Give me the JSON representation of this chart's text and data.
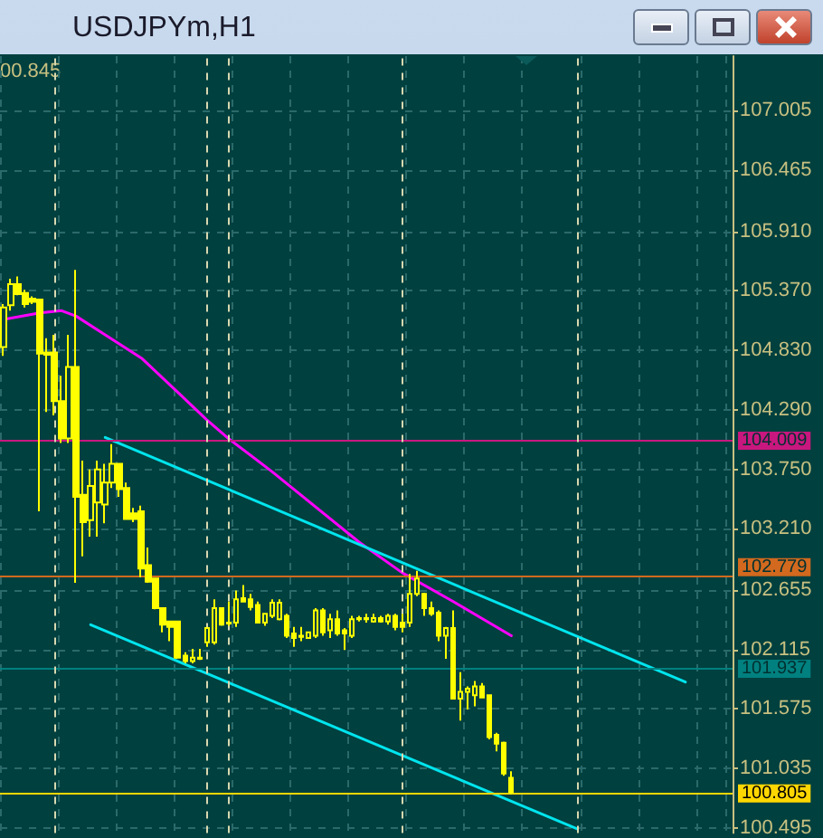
{
  "chart_data": {
    "type": "candlestick",
    "title": "USDJPYm,H1",
    "annotations": [
      "00.845"
    ],
    "categories": [
      null,
      null,
      null,
      null,
      null,
      null,
      null,
      null,
      null,
      null,
      null,
      null,
      null,
      null,
      null,
      null,
      null,
      null,
      null,
      null,
      null,
      null,
      null,
      null,
      null,
      null,
      null,
      null,
      null,
      null,
      null,
      null,
      null,
      null,
      null,
      null,
      null,
      null,
      null,
      null,
      null,
      null,
      null,
      null,
      null,
      null,
      null,
      null,
      null,
      null,
      null,
      null,
      null,
      null,
      null,
      null,
      null,
      null,
      null,
      null,
      null,
      null,
      null,
      null,
      null,
      null,
      null,
      null,
      null,
      null,
      null,
      null,
      null,
      null,
      null,
      null,
      null,
      null,
      null,
      null,
      null,
      null,
      null,
      null,
      null,
      null,
      null,
      null,
      null,
      null,
      null,
      null,
      null,
      null,
      null,
      null,
      null,
      null,
      null,
      null,
      null
    ],
    "ohlc": [
      [
        104.86,
        105.25,
        104.78,
        105.22
      ],
      [
        105.24,
        105.48,
        105.19,
        105.43
      ],
      [
        105.43,
        105.5,
        105.33,
        105.34
      ],
      [
        105.35,
        105.38,
        105.22,
        105.25
      ],
      [
        105.3,
        105.32,
        105.25,
        105.27
      ],
      [
        105.29,
        105.3,
        103.37,
        104.8
      ],
      [
        104.81,
        104.94,
        104.27,
        104.79
      ],
      [
        104.81,
        104.97,
        104.24,
        104.37
      ],
      [
        104.37,
        104.6,
        103.99,
        104.03
      ],
      [
        104.03,
        104.97,
        103.99,
        104.68
      ],
      [
        104.68,
        105.56,
        102.72,
        103.5
      ],
      [
        103.52,
        103.83,
        102.96,
        103.27
      ],
      [
        103.29,
        103.75,
        103.14,
        103.6
      ],
      [
        103.45,
        103.83,
        103.14,
        103.75
      ],
      [
        103.43,
        103.8,
        103.26,
        103.63
      ],
      [
        103.63,
        103.98,
        103.58,
        103.8
      ],
      [
        103.8,
        103.8,
        103.5,
        103.57
      ],
      [
        103.58,
        103.63,
        103.3,
        103.3
      ],
      [
        103.35,
        103.4,
        103.27,
        103.3
      ],
      [
        103.37,
        103.42,
        102.77,
        102.85
      ],
      [
        102.88,
        103.04,
        102.72,
        102.73
      ],
      [
        102.76,
        102.76,
        102.48,
        102.49
      ],
      [
        102.49,
        102.49,
        102.27,
        102.34
      ],
      [
        102.37,
        102.37,
        102.19,
        102.32
      ],
      [
        102.37,
        102.37,
        102.03,
        102.04
      ],
      [
        102.06,
        102.09,
        101.99,
        102.01
      ],
      [
        102.01,
        102.12,
        101.99,
        102.04
      ],
      [
        102.03,
        102.12,
        102.02,
        102.04
      ],
      [
        102.18,
        102.32,
        102.14,
        102.31
      ],
      [
        102.18,
        102.57,
        102.16,
        102.49
      ],
      [
        102.49,
        102.49,
        102.33,
        102.34
      ],
      [
        102.35,
        102.55,
        102.33,
        102.36
      ],
      [
        102.36,
        102.65,
        102.32,
        102.57
      ],
      [
        102.58,
        102.7,
        102.55,
        102.55
      ],
      [
        102.57,
        102.62,
        102.47,
        102.5
      ],
      [
        102.52,
        102.55,
        102.36,
        102.36
      ],
      [
        102.36,
        102.44,
        102.33,
        102.44
      ],
      [
        102.42,
        102.57,
        102.4,
        102.54
      ],
      [
        102.39,
        102.57,
        102.38,
        102.54
      ],
      [
        102.42,
        102.44,
        102.22,
        102.24
      ],
      [
        102.26,
        102.32,
        102.14,
        102.22
      ],
      [
        102.24,
        102.32,
        102.19,
        102.23
      ],
      [
        102.22,
        102.27,
        102.22,
        102.27
      ],
      [
        102.24,
        102.49,
        102.22,
        102.47
      ],
      [
        102.47,
        102.49,
        102.24,
        102.27
      ],
      [
        102.29,
        102.44,
        102.22,
        102.39
      ],
      [
        102.39,
        102.47,
        102.24,
        102.26
      ],
      [
        102.29,
        102.31,
        102.11,
        102.26
      ],
      [
        102.24,
        102.42,
        102.22,
        102.39
      ],
      [
        102.39,
        102.42,
        102.37,
        102.4
      ],
      [
        102.4,
        102.44,
        102.36,
        102.39
      ],
      [
        102.37,
        102.44,
        102.36,
        102.4
      ],
      [
        102.4,
        102.42,
        102.36,
        102.37
      ],
      [
        102.37,
        102.44,
        102.34,
        102.42
      ],
      [
        102.42,
        102.44,
        102.29,
        102.32
      ],
      [
        102.36,
        102.44,
        102.27,
        102.32
      ],
      [
        102.36,
        102.8,
        102.32,
        102.62
      ],
      [
        102.62,
        102.83,
        102.6,
        102.76
      ],
      [
        102.62,
        102.63,
        102.42,
        102.49
      ],
      [
        102.49,
        102.55,
        102.42,
        102.44
      ],
      [
        102.45,
        102.47,
        102.19,
        102.24
      ],
      [
        102.24,
        102.32,
        102.03,
        102.31
      ],
      [
        102.31,
        102.47,
        101.67,
        101.67
      ],
      [
        101.67,
        101.91,
        101.47,
        101.73
      ],
      [
        101.73,
        101.78,
        101.57,
        101.76
      ],
      [
        101.7,
        101.83,
        101.6,
        101.78
      ],
      [
        101.78,
        101.81,
        101.68,
        101.68
      ],
      [
        101.7,
        101.7,
        101.3,
        101.32
      ],
      [
        101.34,
        101.36,
        101.19,
        101.26
      ],
      [
        101.27,
        101.28,
        100.97,
        100.99
      ],
      [
        100.95,
        101.01,
        100.8,
        100.82
      ],
      null,
      null,
      null,
      null,
      null,
      null,
      null,
      null,
      null,
      null,
      null,
      null,
      null,
      null,
      null,
      null,
      null,
      null,
      null,
      null,
      null,
      null,
      null,
      null,
      null,
      null,
      null,
      null,
      null,
      null
    ],
    "series": [
      {
        "type": "line",
        "color": "#ff00ff",
        "values": [
          105.11,
          null,
          null,
          null,
          null,
          105.17,
          null,
          null,
          105.19,
          null,
          105.14,
          null,
          null,
          null,
          104.97,
          null,
          null,
          null,
          null,
          104.76,
          null,
          null,
          null,
          null,
          104.45,
          null,
          null,
          null,
          104.2,
          null,
          null,
          104.03,
          null,
          null,
          null,
          null,
          null,
          103.73,
          null,
          null,
          null,
          null,
          null,
          null,
          null,
          null,
          null,
          null,
          null,
          103.09,
          null,
          null,
          null,
          null,
          null,
          102.81,
          null,
          null,
          null,
          null,
          null,
          null,
          102.55,
          null,
          null,
          null,
          null,
          null,
          null,
          null,
          102.24,
          null,
          null,
          null,
          null,
          null,
          null,
          null,
          null,
          null,
          null,
          null,
          null,
          null,
          null,
          null,
          null,
          null,
          null,
          null,
          null,
          null,
          null,
          null,
          null,
          null,
          null,
          null,
          null,
          null,
          null
        ]
      },
      {
        "type": "line",
        "color": "#00e5ee",
        "values": [
          null,
          null,
          null,
          null,
          null,
          null,
          null,
          null,
          null,
          null,
          null,
          null,
          null,
          null,
          104.04,
          null,
          null,
          null,
          null,
          null,
          null,
          null,
          null,
          null,
          null,
          null,
          null,
          null,
          null,
          null,
          null,
          null,
          null,
          null,
          null,
          null,
          null,
          null,
          null,
          null,
          null,
          null,
          null,
          null,
          null,
          null,
          null,
          null,
          null,
          null,
          null,
          null,
          null,
          null,
          null,
          null,
          null,
          null,
          null,
          null,
          null,
          null,
          null,
          null,
          null,
          null,
          null,
          null,
          null,
          null,
          null,
          null,
          null,
          null,
          null,
          null,
          null,
          null,
          null,
          null,
          null,
          null,
          null,
          null,
          null,
          null,
          null,
          null,
          null,
          null,
          null,
          null,
          null,
          null,
          101.82,
          null,
          null,
          null,
          null,
          null,
          null
        ]
      },
      {
        "type": "line",
        "color": "#00e5ee",
        "values": [
          null,
          null,
          null,
          null,
          null,
          null,
          null,
          null,
          null,
          null,
          null,
          null,
          102.34,
          null,
          null,
          null,
          null,
          null,
          null,
          null,
          null,
          null,
          null,
          null,
          null,
          null,
          null,
          null,
          null,
          null,
          null,
          null,
          null,
          null,
          null,
          null,
          null,
          null,
          null,
          null,
          null,
          null,
          null,
          null,
          null,
          null,
          null,
          null,
          null,
          null,
          null,
          null,
          null,
          null,
          null,
          null,
          null,
          null,
          null,
          null,
          null,
          null,
          null,
          null,
          null,
          null,
          null,
          null,
          null,
          null,
          null,
          null,
          null,
          null,
          null,
          null,
          null,
          null,
          null,
          100.49,
          null,
          null,
          null,
          null,
          null,
          null,
          null,
          null,
          null,
          null,
          null,
          null,
          null,
          null,
          null,
          null,
          null,
          null,
          null,
          null,
          null
        ]
      }
    ],
    "color": "#ffff00",
    "ylim": [
      100.45,
      107.5
    ],
    "yticks": [
      100.495,
      101.035,
      101.575,
      102.115,
      102.655,
      {
        "value": 103.21,
        "label": "103.210"
      },
      {
        "value": 103.75,
        "label": "103.750"
      },
      {
        "value": 104.29,
        "label": "104.290"
      },
      {
        "value": 104.83,
        "label": "104.830"
      },
      {
        "value": 105.37,
        "label": "105.370"
      },
      {
        "value": 105.91,
        "label": "105.910"
      },
      106.465,
      107.005
    ],
    "ref_lines": [
      {
        "axis": "y",
        "value": 104.009,
        "label": "104.009",
        "color": "#c8177e"
      },
      {
        "axis": "y",
        "value": 102.779,
        "label": "102.779",
        "color": "#d2691e"
      },
      {
        "axis": "y",
        "value": 101.937,
        "label": "101.937",
        "color": "#00807f"
      },
      {
        "axis": "y",
        "value": 100.805,
        "label": "100.805",
        "color": "#ffd700"
      }
    ],
    "grid": true,
    "tick_labels": "y",
    "line_style": "solid"
  }
}
